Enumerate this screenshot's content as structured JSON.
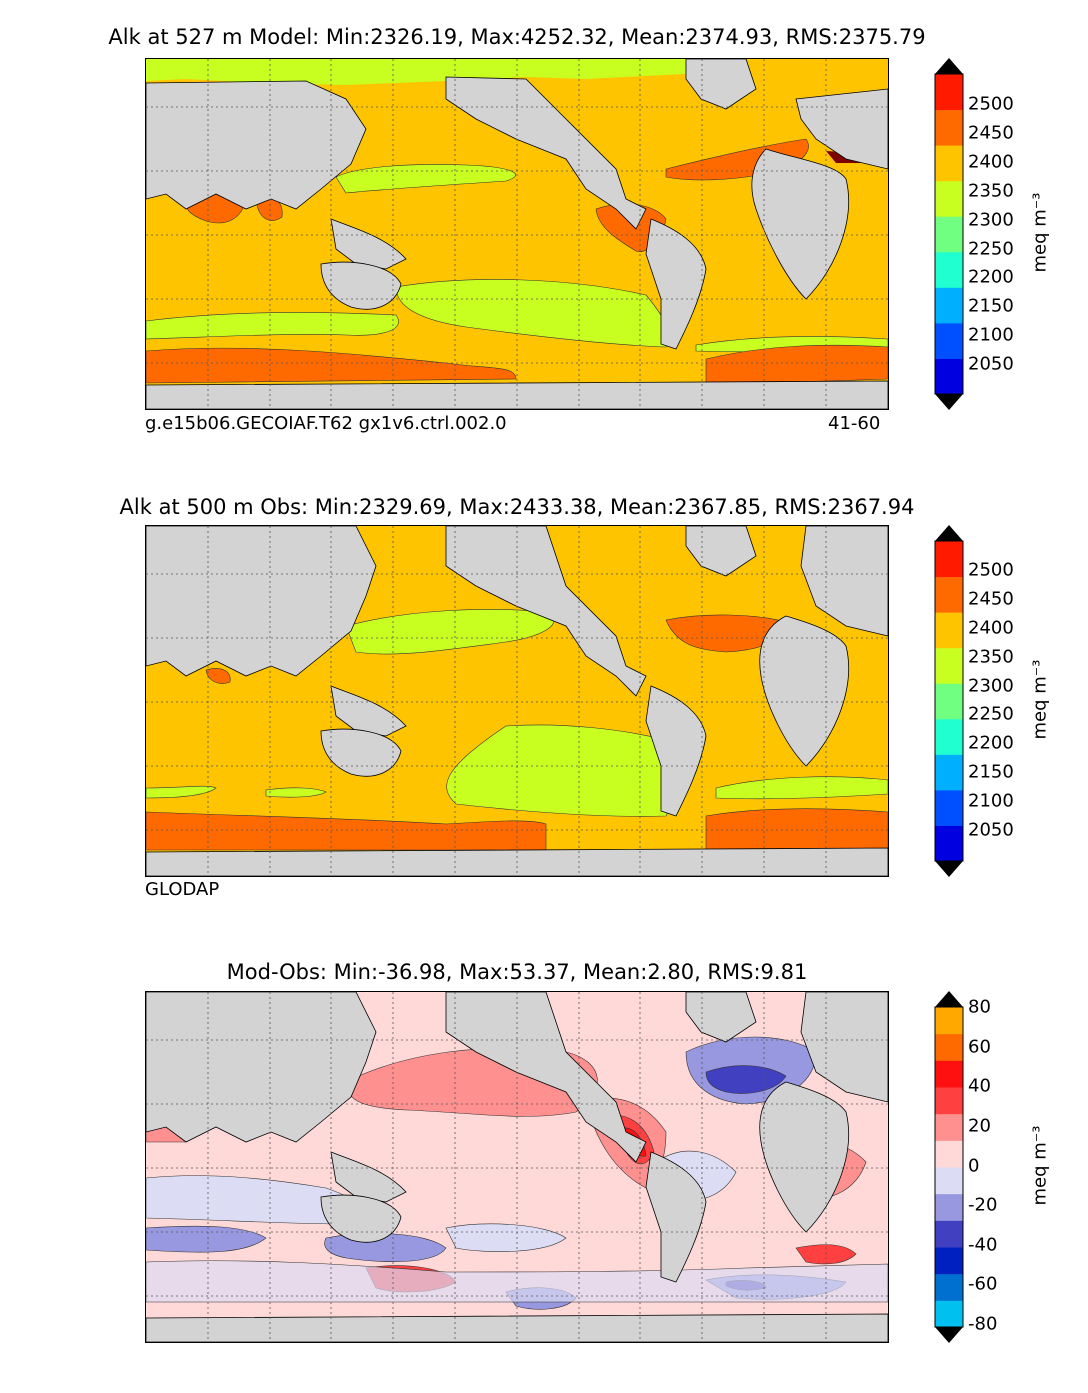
{
  "panels": [
    {
      "title": "Alk at 527 m Model: Min:2326.19, Max:4252.32, Mean:2374.93, RMS:2375.79",
      "left_label": "g.e15b06.GECOIAF.T62 gx1v6.ctrl.002.0",
      "right_label": "41-60",
      "unit_label": "meq m⁻³",
      "colorbar_ticks": [
        "2500",
        "2450",
        "2400",
        "2350",
        "2300",
        "2250",
        "2200",
        "2150",
        "2100",
        "2050"
      ],
      "colorbar_colors": [
        "#000080",
        "#0000e0",
        "#0050ff",
        "#00b0ff",
        "#20ffd0",
        "#70ff80",
        "#c8ff20",
        "#ffc400",
        "#ff6a00",
        "#ff1a00",
        "#800000"
      ],
      "field": "model"
    },
    {
      "title": "Alk at 500 m Obs: Min:2329.69, Max:2433.38, Mean:2367.85, RMS:2367.94",
      "left_label": "GLODAP",
      "right_label": "",
      "unit_label": "meq m⁻³",
      "colorbar_ticks": [
        "2500",
        "2450",
        "2400",
        "2350",
        "2300",
        "2250",
        "2200",
        "2150",
        "2100",
        "2050"
      ],
      "colorbar_colors": [
        "#000080",
        "#0000e0",
        "#0050ff",
        "#00b0ff",
        "#20ffd0",
        "#70ff80",
        "#c8ff20",
        "#ffc400",
        "#ff6a00",
        "#ff1a00",
        "#800000"
      ],
      "field": "obs"
    },
    {
      "title": "Mod-Obs: Min:-36.98, Max:53.37, Mean:2.80, RMS:9.81",
      "left_label": "",
      "right_label": "",
      "unit_label": "meq m⁻³",
      "colorbar_ticks": [
        "80",
        "60",
        "40",
        "20",
        "0",
        "-20",
        "-40",
        "-60",
        "-80"
      ],
      "colorbar_colors": [
        "#00ffff",
        "#00c0f0",
        "#0070d0",
        "#0020c0",
        "#4040c0",
        "#9898e0",
        "#dcdcf4",
        "#ffd8d8",
        "#ff9090",
        "#ff4040",
        "#ff1010",
        "#ff6a00",
        "#ffa800",
        "#ffff00"
      ],
      "field": "diff"
    }
  ],
  "colors": {
    "land": "#d3d3d3",
    "coast": "#000000",
    "grid": "#555555"
  }
}
